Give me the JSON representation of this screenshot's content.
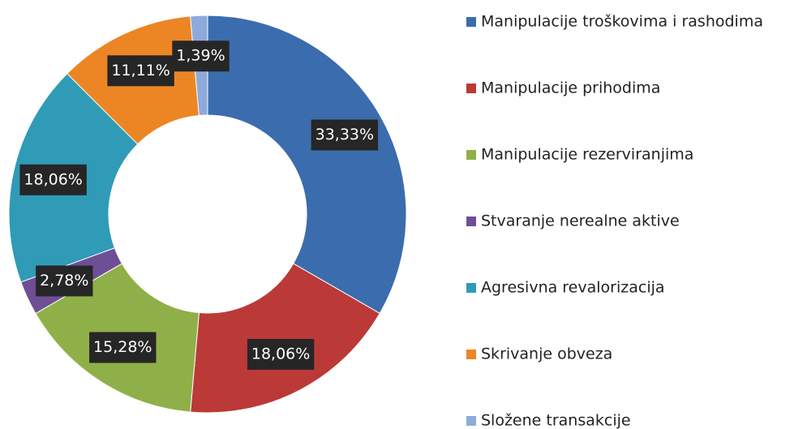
{
  "chart_data": {
    "type": "donut",
    "categories": [
      "Manipulacije troškovima i rashodima",
      "Manipulacije prihodima",
      "Manipulacije rezerviranjima",
      "Stvaranje nerealne aktive",
      "Agresivna revalorizacija",
      "Skrivanje obveza",
      "Složene transakcije"
    ],
    "values": [
      33.33,
      18.06,
      15.28,
      2.78,
      18.06,
      11.11,
      1.39
    ],
    "value_labels": [
      "33,33%",
      "18,06%",
      "15,28%",
      "2,78%",
      "18,06%",
      "11,11%",
      "1,39%"
    ],
    "colors": [
      "#3b6cad",
      "#bb3a37",
      "#8fb048",
      "#6e4f95",
      "#2f9bb7",
      "#ec8524",
      "#8eaadb"
    ],
    "legend": "right"
  }
}
